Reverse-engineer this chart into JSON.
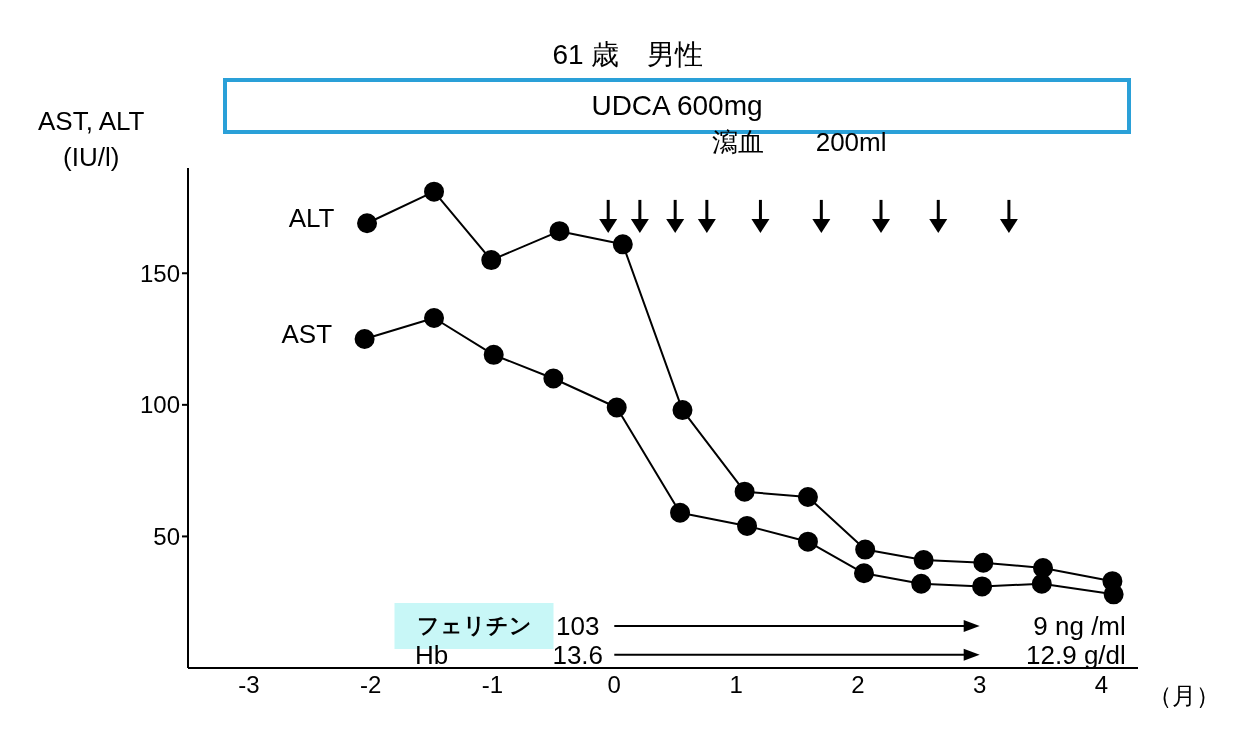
{
  "chart_data": {
    "type": "line",
    "title": "61 歳　男性",
    "subtitle": "UDCA 600mg",
    "xlabel": "（月）",
    "ylabel": "AST, ALT\n(IU/l)",
    "xlim": [
      -3.5,
      4.3
    ],
    "xticks": [
      -3,
      -2,
      -1,
      0,
      1,
      2,
      3,
      4
    ],
    "ylim": [
      0,
      190
    ],
    "yticks": [
      50,
      100,
      150
    ],
    "grid": false,
    "marker": "circle",
    "series": [
      {
        "name": "ALT",
        "color": "#000000",
        "x": [
          -2.03,
          -1.48,
          -1.01,
          -0.45,
          0.07,
          0.56,
          1.07,
          1.59,
          2.06,
          2.54,
          3.03,
          3.52,
          4.09
        ],
        "values": [
          169,
          181,
          155,
          166,
          161,
          98,
          67,
          65,
          45,
          41,
          40,
          38,
          33
        ]
      },
      {
        "name": "AST",
        "color": "#000000",
        "x": [
          -2.05,
          -1.48,
          -0.99,
          -0.5,
          0.02,
          0.54,
          1.09,
          1.59,
          2.05,
          2.52,
          3.02,
          3.51,
          4.1
        ],
        "values": [
          125,
          133,
          119,
          110,
          99,
          59,
          54,
          48,
          36,
          32,
          31,
          32,
          28
        ]
      },
      {
        "type": "scatter",
        "marker": "triangle",
        "color": "#000000",
        "x": [
          -0.05,
          0.21,
          0.5,
          0.76,
          1.2,
          1.7,
          2.19,
          2.66,
          3.24
        ],
        "values": [
          168,
          168,
          168,
          168,
          168,
          168,
          168,
          168,
          168
        ]
      }
    ],
    "annotations": [
      "瀉血　　200ml",
      "フェリチン",
      "103",
      "9 ng /ml",
      "Hb",
      "13.6",
      "12.9 g/dl"
    ]
  }
}
